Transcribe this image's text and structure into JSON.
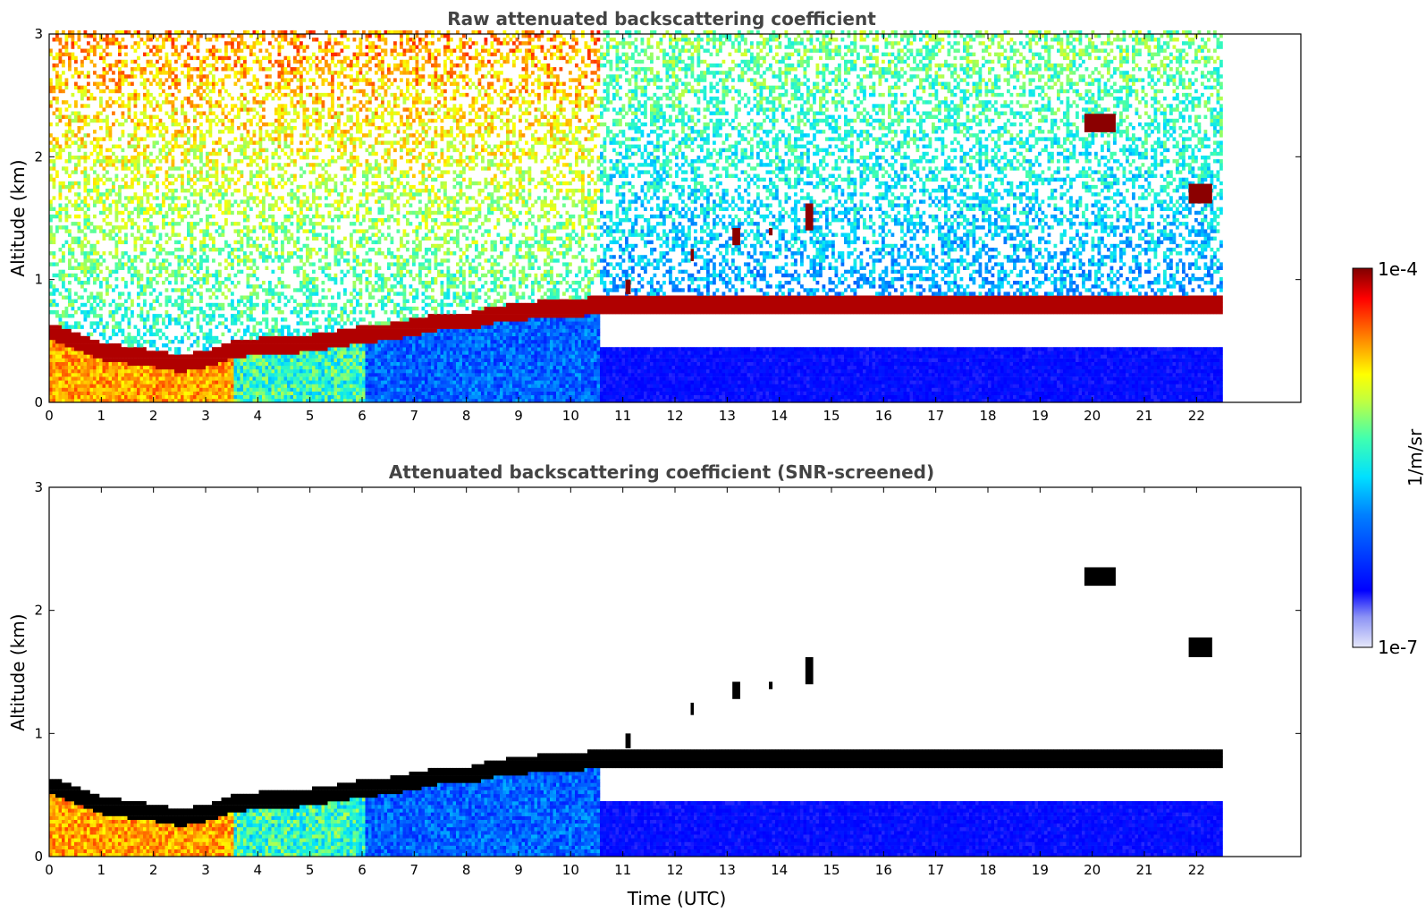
{
  "chart_data": [
    {
      "type": "heatmap",
      "title": "Raw attenuated backscattering coefficient",
      "xlabel": "",
      "ylabel": "Altitude (km)",
      "xlim": [
        0,
        24
      ],
      "ylim": [
        0,
        3
      ],
      "x_ticks": [
        0,
        1,
        2,
        3,
        4,
        5,
        6,
        7,
        8,
        9,
        10,
        11,
        12,
        13,
        14,
        15,
        16,
        17,
        18,
        19,
        20,
        21,
        22
      ],
      "y_ticks": [
        0,
        1,
        2,
        3
      ],
      "data_end_time": 22.45,
      "layer_top_km": [
        {
          "t": 0.0,
          "h": 0.58
        },
        {
          "t": 0.5,
          "h": 0.5
        },
        {
          "t": 1.0,
          "h": 0.42
        },
        {
          "t": 1.5,
          "h": 0.39
        },
        {
          "t": 2.0,
          "h": 0.36
        },
        {
          "t": 2.5,
          "h": 0.32
        },
        {
          "t": 3.0,
          "h": 0.36
        },
        {
          "t": 3.5,
          "h": 0.44
        },
        {
          "t": 4.0,
          "h": 0.46
        },
        {
          "t": 4.5,
          "h": 0.47
        },
        {
          "t": 5.0,
          "h": 0.49
        },
        {
          "t": 5.5,
          "h": 0.52
        },
        {
          "t": 6.0,
          "h": 0.56
        },
        {
          "t": 6.5,
          "h": 0.58
        },
        {
          "t": 7.0,
          "h": 0.62
        },
        {
          "t": 7.5,
          "h": 0.67
        },
        {
          "t": 8.0,
          "h": 0.66
        },
        {
          "t": 8.5,
          "h": 0.72
        },
        {
          "t": 9.0,
          "h": 0.74
        },
        {
          "t": 9.5,
          "h": 0.77
        },
        {
          "t": 10.0,
          "h": 0.76
        },
        {
          "t": 10.4,
          "h": 0.8
        }
      ],
      "cloud_patches": [
        {
          "t0": 19.85,
          "t1": 20.45,
          "h0": 2.2,
          "h1": 2.35
        },
        {
          "t0": 21.85,
          "t1": 22.3,
          "h0": 1.62,
          "h1": 1.78
        },
        {
          "t0": 14.5,
          "t1": 14.65,
          "h0": 1.4,
          "h1": 1.62
        },
        {
          "t0": 13.1,
          "t1": 13.25,
          "h0": 1.28,
          "h1": 1.42
        },
        {
          "t0": 13.8,
          "t1": 13.87,
          "h0": 1.36,
          "h1": 1.42
        },
        {
          "t0": 11.05,
          "t1": 11.15,
          "h0": 0.88,
          "h1": 1.0
        },
        {
          "t0": 12.3,
          "t1": 12.36,
          "h0": 1.15,
          "h1": 1.25
        }
      ]
    },
    {
      "type": "heatmap",
      "title": "Attenuated backscattering coefficient (SNR-screened)",
      "xlabel": "Time (UTC)",
      "ylabel": "Altitude (km)",
      "xlim": [
        0,
        24
      ],
      "ylim": [
        0,
        3
      ],
      "x_ticks": [
        0,
        1,
        2,
        3,
        4,
        5,
        6,
        7,
        8,
        9,
        10,
        11,
        12,
        13,
        14,
        15,
        16,
        17,
        18,
        19,
        20,
        21,
        22
      ],
      "y_ticks": [
        0,
        1,
        2,
        3
      ],
      "data_end_time": 22.45,
      "screened_noise_top_km": 0.62
    }
  ],
  "colorbar": {
    "label": "1/m/sr",
    "max_label": "1e-4",
    "min_label": "1e-7",
    "colormap": "jet",
    "scale": "log"
  },
  "colors": {
    "noise_blue": "#0a14f0",
    "aerosol_red": "#8b0000",
    "cloud_black": "#000000"
  }
}
